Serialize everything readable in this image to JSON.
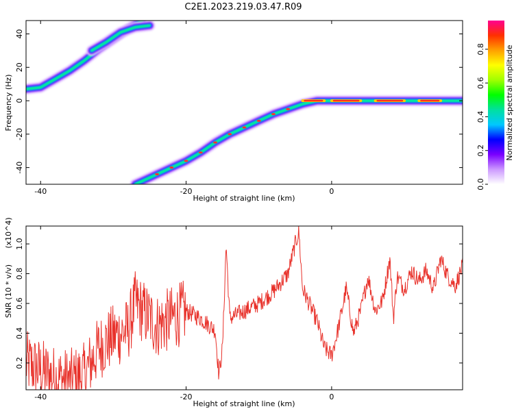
{
  "title": "C2E1.2023.219.03.47.R09",
  "colors": {
    "trace": "#e8312a",
    "frame": "#000000"
  },
  "chart_data": [
    {
      "type": "heatmap",
      "name": "spectrogram",
      "xlabel": "Height of straight line (km)",
      "ylabel": "Frequency (Hz)",
      "xlim": [
        -42,
        18
      ],
      "ylim": [
        -50,
        48
      ],
      "xticks": [
        -40,
        -20,
        0
      ],
      "yticks": [
        -40,
        -20,
        0,
        20,
        40
      ],
      "colorbar": {
        "label": "Normalized spectral amplitude",
        "range": [
          0.0,
          0.97
        ],
        "ticks": [
          0.0,
          0.2,
          0.4,
          0.6,
          0.8
        ],
        "tick_labels": [
          "0.0",
          "0.2",
          "0.4",
          "0.6",
          "0.8"
        ],
        "colormap": [
          "#ffffff",
          "#cc99ff",
          "#7a00ff",
          "#0000ff",
          "#00c8ff",
          "#00e0a0",
          "#00ff00",
          "#a0ff00",
          "#ffff00",
          "#ffa000",
          "#ff3000",
          "#ff0090"
        ]
      },
      "ridges": [
        {
          "name": "upper-branch",
          "x": [
            -42,
            -40,
            -38,
            -36,
            -34,
            -32,
            -30,
            -28,
            -26
          ],
          "y": [
            7,
            8,
            13,
            18,
            24,
            31,
            37,
            43,
            48
          ]
        },
        {
          "name": "upper-branch-2",
          "x": [
            -33,
            -31,
            -29,
            -27,
            -25
          ],
          "y": [
            30,
            35,
            41,
            44,
            45
          ]
        },
        {
          "name": "main-branch",
          "x": [
            -27,
            -24,
            -22,
            -20,
            -18,
            -16,
            -14,
            -12,
            -10,
            -8,
            -6,
            -4,
            -2,
            0,
            4,
            8,
            12,
            16,
            18
          ],
          "y": [
            -50,
            -44,
            -40,
            -36,
            -31,
            -25,
            -20,
            -16,
            -12,
            -8,
            -5,
            -2,
            0,
            0,
            0,
            0,
            0,
            0,
            0
          ]
        }
      ]
    },
    {
      "type": "line",
      "name": "snr",
      "xlabel": "Height of straight line (km)",
      "ylabel": "SNR (10 * v/v)",
      "multiplier": "(x10^4)",
      "xlim": [
        -42,
        18
      ],
      "ylim": [
        0.02,
        1.12
      ],
      "xticks": [
        -40,
        -20,
        0
      ],
      "yticks": [
        0.2,
        0.4,
        0.6,
        0.8,
        1.0
      ],
      "ytick_labels": [
        "0.2",
        "0.4",
        "0.6",
        "0.8",
        "1.0"
      ],
      "series": [
        {
          "x": [
            -42,
            -40,
            -38,
            -36,
            -34,
            -32,
            -30,
            -28,
            -27,
            -26,
            -25,
            -24,
            -22,
            -20,
            -18,
            -16,
            -15.5,
            -15,
            -14.5,
            -14,
            -12,
            -10,
            -8,
            -6,
            -5,
            -4.5,
            -4,
            -2,
            -1,
            0,
            1,
            2,
            3,
            4,
            5,
            6,
            7,
            8,
            8.5,
            9,
            10,
            11,
            12,
            13,
            14,
            15,
            16,
            17,
            18
          ],
          "y": [
            0.2,
            0.15,
            0.1,
            0.08,
            0.12,
            0.3,
            0.38,
            0.42,
            0.6,
            0.55,
            0.5,
            0.45,
            0.5,
            0.55,
            0.5,
            0.42,
            0.12,
            0.3,
            1.0,
            0.5,
            0.55,
            0.6,
            0.68,
            0.8,
            1.0,
            1.08,
            0.7,
            0.48,
            0.3,
            0.25,
            0.45,
            0.7,
            0.4,
            0.55,
            0.78,
            0.55,
            0.62,
            0.9,
            0.5,
            0.78,
            0.7,
            0.82,
            0.75,
            0.82,
            0.7,
            0.9,
            0.78,
            0.72,
            0.85
          ]
        }
      ]
    }
  ]
}
